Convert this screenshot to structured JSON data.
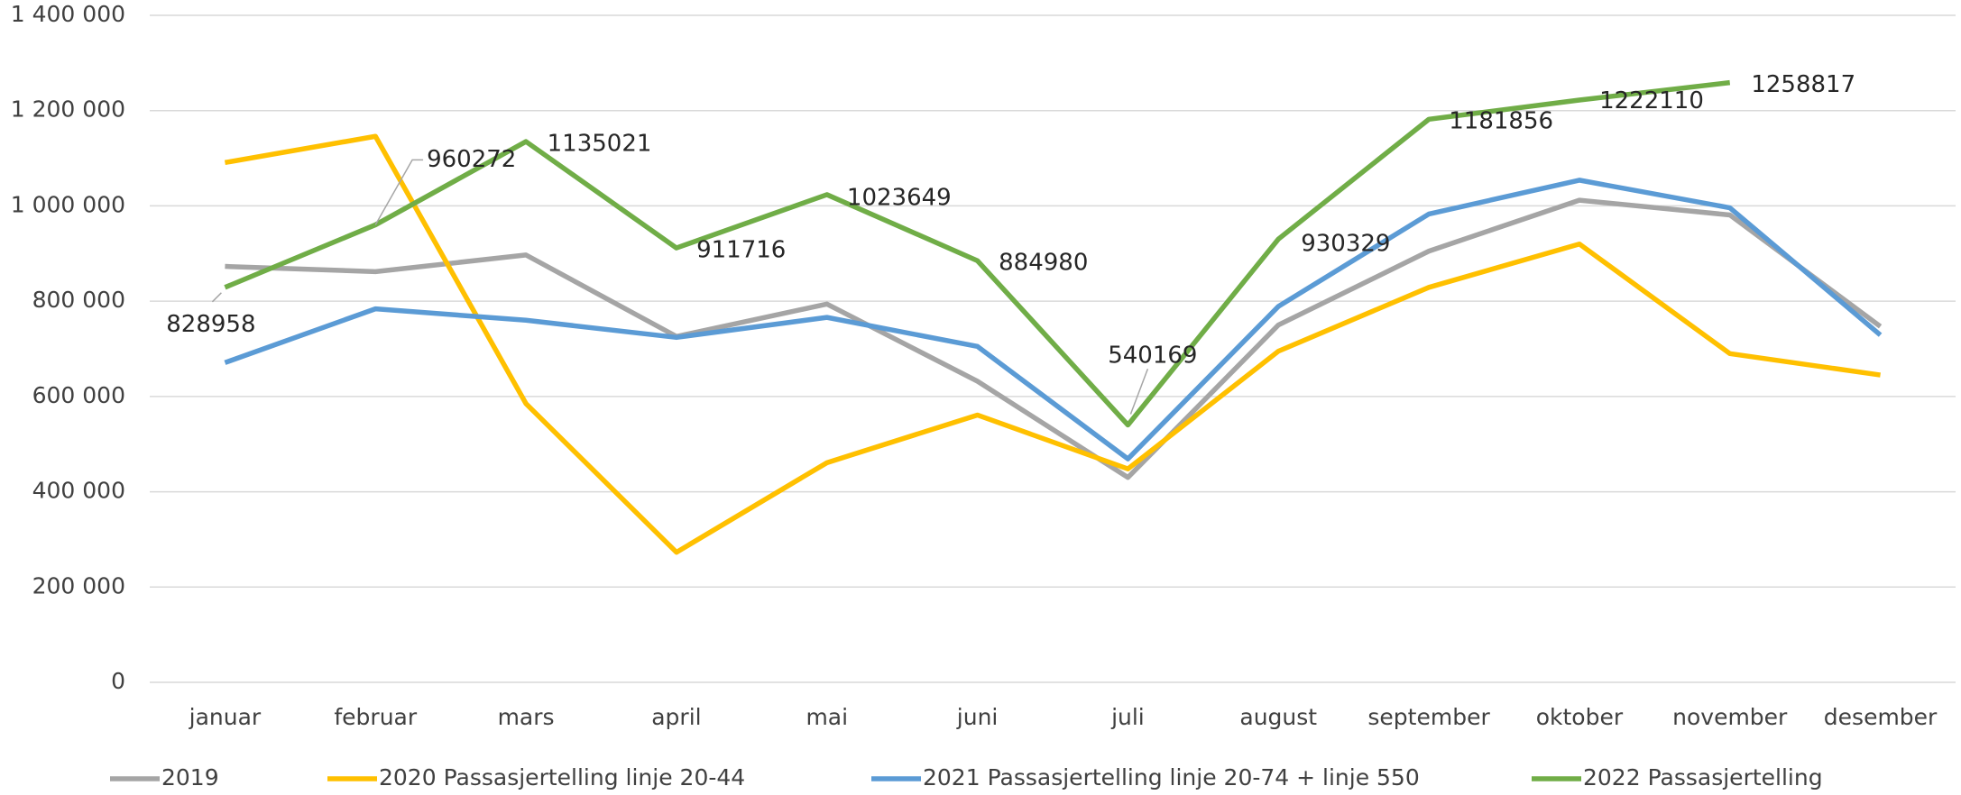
{
  "chart_data": {
    "type": "line",
    "categories": [
      "januar",
      "februar",
      "mars",
      "april",
      "mai",
      "juni",
      "juli",
      "august",
      "september",
      "oktober",
      "november",
      "desember"
    ],
    "series": [
      {
        "name": "2019",
        "color": "#a5a5a5",
        "values": [
          873000,
          862000,
          897000,
          726000,
          794000,
          632000,
          430000,
          750000,
          905000,
          1012000,
          981000,
          747000
        ]
      },
      {
        "name": "2020 Passasjertelling linje 20-44",
        "color": "#ffc000",
        "values": [
          1091000,
          1146000,
          585000,
          273000,
          461000,
          561000,
          448000,
          695000,
          829000,
          920000,
          690000,
          645000
        ]
      },
      {
        "name": "2021 Passasjertelling linje 20-74 + linje 550",
        "color": "#5b9bd5",
        "values": [
          671000,
          784000,
          760000,
          724000,
          766000,
          705000,
          469000,
          789000,
          983000,
          1054000,
          996000,
          729000
        ]
      },
      {
        "name": "2022 Passasjertelling",
        "color": "#70ad47",
        "labels": true,
        "values": [
          828958,
          960272,
          1135021,
          911716,
          1023649,
          884980,
          540169,
          930329,
          1181856,
          1222110,
          1258817,
          null
        ]
      }
    ],
    "ylim": [
      0,
      1400000
    ],
    "yticks": [
      0,
      {
        "value": 200000,
        "label": "200 000"
      },
      {
        "value": 400000,
        "label": "400 000"
      },
      {
        "value": 600000,
        "label": "600 000"
      },
      {
        "value": 800000,
        "label": "800 000"
      },
      {
        "value": 1000000,
        "label": "1 000 000"
      },
      {
        "value": 1200000,
        "label": "1 200 000"
      },
      {
        "value": 1400000,
        "label": "1 400 000"
      }
    ],
    "grid": true,
    "legend": "bottom"
  }
}
